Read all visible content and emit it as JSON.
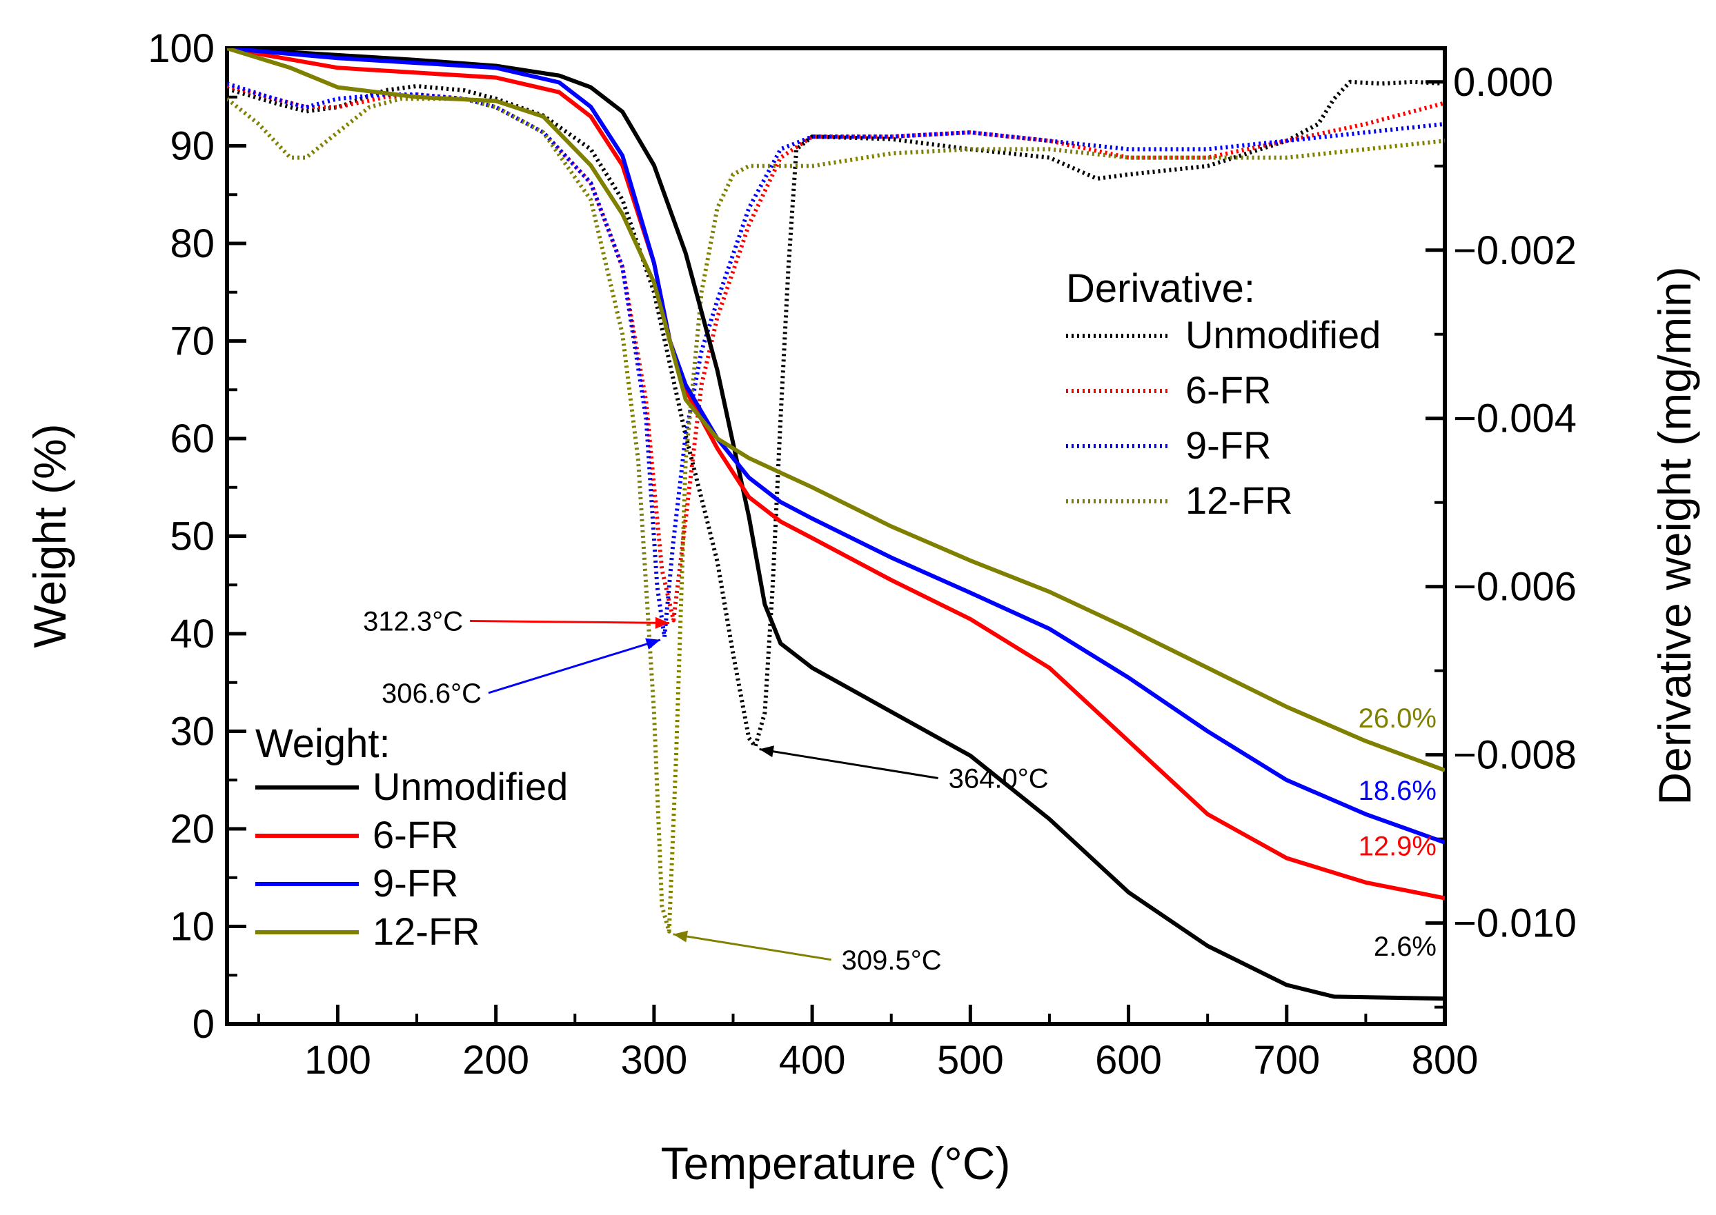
{
  "chart_data": {
    "type": "line",
    "xlabel": "Temperature (°C)",
    "ylabel": "Weight (%)",
    "y2label": "Derivative weight (mg/min)",
    "xlim": [
      30,
      800
    ],
    "ylim": [
      0,
      100
    ],
    "y2lim": [
      -0.0112,
      0.0004
    ],
    "x_ticks": [
      100,
      200,
      300,
      400,
      500,
      600,
      700,
      800
    ],
    "y_ticks": [
      0,
      10,
      20,
      30,
      40,
      50,
      60,
      70,
      80,
      90,
      100
    ],
    "y2_ticks": [
      0.0,
      -0.002,
      -0.004,
      -0.006,
      -0.008,
      -0.01
    ],
    "y2_tick_labels": [
      "0.000",
      "−0.002",
      "−0.004",
      "−0.006",
      "−0.008",
      "−0.010"
    ],
    "colors": {
      "Unmodified": "#000000",
      "6-FR": "#ff0000",
      "9-FR": "#0000ff",
      "12-FR": "#808000"
    },
    "weight_legend_title": "Weight:",
    "derivative_legend_title": "Derivative:",
    "weight_series": [
      {
        "name": "Unmodified",
        "color": "#000000",
        "x": [
          30,
          100,
          150,
          200,
          240,
          260,
          280,
          300,
          320,
          340,
          360,
          370,
          380,
          400,
          450,
          500,
          550,
          600,
          650,
          700,
          730,
          800
        ],
        "y": [
          100,
          99.3,
          98.8,
          98.2,
          97.2,
          96,
          93.5,
          88,
          79,
          67,
          52,
          43,
          39,
          36.5,
          32,
          27.5,
          21,
          13.5,
          8,
          4,
          2.8,
          2.6
        ]
      },
      {
        "name": "6-FR",
        "color": "#ff0000",
        "x": [
          30,
          100,
          150,
          200,
          240,
          260,
          280,
          300,
          310,
          320,
          340,
          360,
          380,
          400,
          450,
          500,
          550,
          600,
          650,
          700,
          750,
          800
        ],
        "y": [
          100,
          98,
          97.5,
          97,
          95.5,
          93,
          88,
          78,
          70,
          65,
          59,
          54,
          51.5,
          49.8,
          45.5,
          41.5,
          36.5,
          29,
          21.5,
          17,
          14.5,
          12.9
        ]
      },
      {
        "name": "9-FR",
        "color": "#0000ff",
        "x": [
          30,
          100,
          150,
          200,
          240,
          260,
          280,
          300,
          310,
          320,
          340,
          360,
          380,
          400,
          450,
          500,
          550,
          600,
          650,
          700,
          750,
          800
        ],
        "y": [
          100,
          99,
          98.5,
          98,
          96.5,
          94,
          89,
          78,
          70,
          65.5,
          60,
          56,
          53.5,
          51.8,
          47.8,
          44.2,
          40.5,
          35.5,
          30,
          25,
          21.5,
          18.6
        ]
      },
      {
        "name": "12-FR",
        "color": "#808000",
        "x": [
          30,
          70,
          100,
          150,
          200,
          230,
          260,
          280,
          300,
          310,
          320,
          340,
          360,
          400,
          450,
          500,
          550,
          600,
          650,
          700,
          750,
          800
        ],
        "y": [
          100,
          98,
          96,
          95,
          94.6,
          93,
          88,
          83,
          76,
          70,
          64,
          60,
          58,
          55,
          51,
          47.5,
          44.3,
          40.5,
          36.5,
          32.5,
          29,
          26.0
        ]
      }
    ],
    "derivative_series": [
      {
        "name": "Unmodified",
        "color": "#000000",
        "x": [
          30,
          60,
          80,
          100,
          130,
          150,
          180,
          200,
          230,
          260,
          280,
          300,
          320,
          340,
          350,
          360,
          364,
          370,
          375,
          380,
          385,
          390,
          400,
          450,
          500,
          550,
          580,
          600,
          650,
          700,
          720,
          730,
          740,
          760,
          780,
          800
        ],
        "y": [
          -8e-05,
          -0.00025,
          -0.00035,
          -0.0003,
          -0.0001,
          -5e-05,
          -0.0001,
          -0.0002,
          -0.0004,
          -0.0008,
          -0.0014,
          -0.0025,
          -0.0042,
          -0.0057,
          -0.0068,
          -0.0078,
          -0.0079,
          -0.0075,
          -0.006,
          -0.004,
          -0.0022,
          -0.0008,
          -0.00065,
          -0.00068,
          -0.0008,
          -0.0009,
          -0.00115,
          -0.0011,
          -0.001,
          -0.0007,
          -0.0005,
          -0.0002,
          0.0,
          -2e-05,
          0.0,
          -2e-05
        ]
      },
      {
        "name": "6-FR",
        "color": "#ff0000",
        "x": [
          30,
          60,
          80,
          100,
          130,
          150,
          180,
          200,
          230,
          260,
          280,
          295,
          305,
          312.3,
          320,
          330,
          340,
          360,
          380,
          400,
          450,
          500,
          550,
          600,
          650,
          700,
          750,
          800
        ],
        "y": [
          -5e-05,
          -0.0002,
          -0.0003,
          -0.0003,
          -0.00018,
          -0.00015,
          -0.0002,
          -0.0003,
          -0.0006,
          -0.0012,
          -0.0022,
          -0.0038,
          -0.0058,
          -0.0064,
          -0.0052,
          -0.0036,
          -0.0028,
          -0.0017,
          -0.0009,
          -0.00065,
          -0.00065,
          -0.0006,
          -0.0007,
          -0.0009,
          -0.0009,
          -0.0007,
          -0.0005,
          -0.00025
        ]
      },
      {
        "name": "9-FR",
        "color": "#0000ff",
        "x": [
          30,
          60,
          80,
          100,
          130,
          150,
          180,
          200,
          230,
          260,
          280,
          295,
          302,
          306.6,
          312,
          320,
          330,
          340,
          360,
          380,
          400,
          450,
          500,
          550,
          600,
          650,
          700,
          750,
          800
        ],
        "y": [
          -2e-05,
          -0.0002,
          -0.0003,
          -0.0002,
          -0.00015,
          -0.00015,
          -0.0002,
          -0.0003,
          -0.0006,
          -0.0012,
          -0.0022,
          -0.004,
          -0.006,
          -0.0066,
          -0.0055,
          -0.0042,
          -0.0032,
          -0.0026,
          -0.0015,
          -0.0008,
          -0.00065,
          -0.00065,
          -0.0006,
          -0.0007,
          -0.0008,
          -0.0008,
          -0.0007,
          -0.0006,
          -0.0005
        ]
      },
      {
        "name": "12-FR",
        "color": "#808000",
        "x": [
          30,
          50,
          70,
          80,
          100,
          120,
          140,
          160,
          180,
          200,
          230,
          260,
          280,
          290,
          300,
          305,
          309.5,
          314,
          320,
          330,
          340,
          350,
          360,
          400,
          450,
          500,
          550,
          600,
          650,
          700,
          750,
          800
        ],
        "y": [
          -0.0002,
          -0.0005,
          -0.0009,
          -0.0009,
          -0.0006,
          -0.0003,
          -0.0002,
          -0.0002,
          -0.0002,
          -0.0003,
          -0.0006,
          -0.0014,
          -0.003,
          -0.0045,
          -0.0075,
          -0.0098,
          -0.0101,
          -0.008,
          -0.0045,
          -0.0025,
          -0.0015,
          -0.0011,
          -0.001,
          -0.001,
          -0.00085,
          -0.0008,
          -0.0008,
          -0.0009,
          -0.0009,
          -0.0009,
          -0.0008,
          -0.0007
        ]
      }
    ],
    "peak_annotations": [
      {
        "label": "312.3°C",
        "x": 312.3,
        "y2": -0.0064,
        "color": "#ff0000"
      },
      {
        "label": "306.6°C",
        "x": 306.6,
        "y2": -0.0066,
        "color": "#0000ff"
      },
      {
        "label": "364.0°C",
        "x": 364.0,
        "y2": -0.0079,
        "color": "#000000"
      },
      {
        "label": "309.5°C",
        "x": 309.5,
        "y2": -0.0101,
        "color": "#808000"
      }
    ],
    "residue_labels": [
      {
        "label": "26.0%",
        "color": "#808000",
        "value": 26.0
      },
      {
        "label": "18.6%",
        "color": "#0000ff",
        "value": 18.6
      },
      {
        "label": "12.9%",
        "color": "#ff0000",
        "value": 12.9
      },
      {
        "label": "2.6%",
        "color": "#000000",
        "value": 2.6
      }
    ]
  }
}
